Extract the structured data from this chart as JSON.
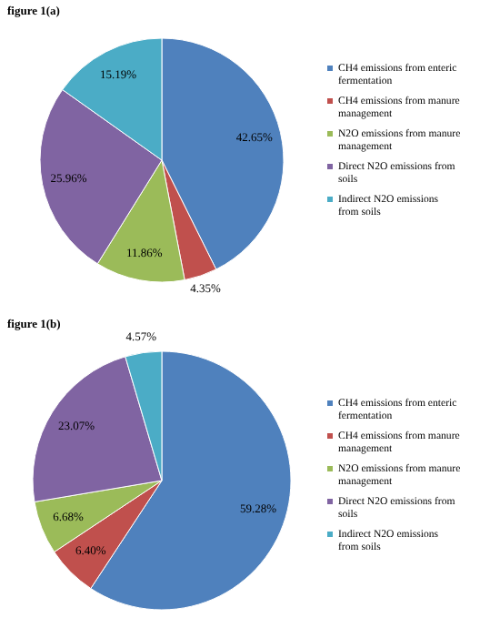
{
  "chart_data": [
    {
      "type": "pie",
      "title": "figure 1(a)",
      "categories": [
        "CH4 emissions from enteric fermentation",
        "CH4 emissions from manure management",
        "N2O emissions from manure management",
        "Direct N2O emissions from soils",
        "Indirect N2O emissions from soils"
      ],
      "values": [
        42.65,
        4.35,
        11.86,
        25.96,
        15.19
      ],
      "value_labels": [
        "42.65%",
        "4.35%",
        "11.86%",
        "25.96%",
        "15.19%"
      ],
      "colors": [
        "#4f81bd",
        "#c0504d",
        "#9bbb59",
        "#8064a2",
        "#4bacc6"
      ],
      "legend": "right"
    },
    {
      "type": "pie",
      "title": "figure 1(b)",
      "categories": [
        "CH4 emissions from enteric fermentation",
        "CH4 emissions from manure management",
        "N2O emissions from manure management",
        "Direct N2O emissions from soils",
        "Indirect N2O emissions from soils"
      ],
      "values": [
        59.28,
        6.4,
        6.68,
        23.07,
        4.57
      ],
      "value_labels": [
        "59.28%",
        "6.40%",
        "6.68%",
        "23.07%",
        "4.57%"
      ],
      "colors": [
        "#4f81bd",
        "#c0504d",
        "#9bbb59",
        "#8064a2",
        "#4bacc6"
      ],
      "legend": "right"
    }
  ]
}
